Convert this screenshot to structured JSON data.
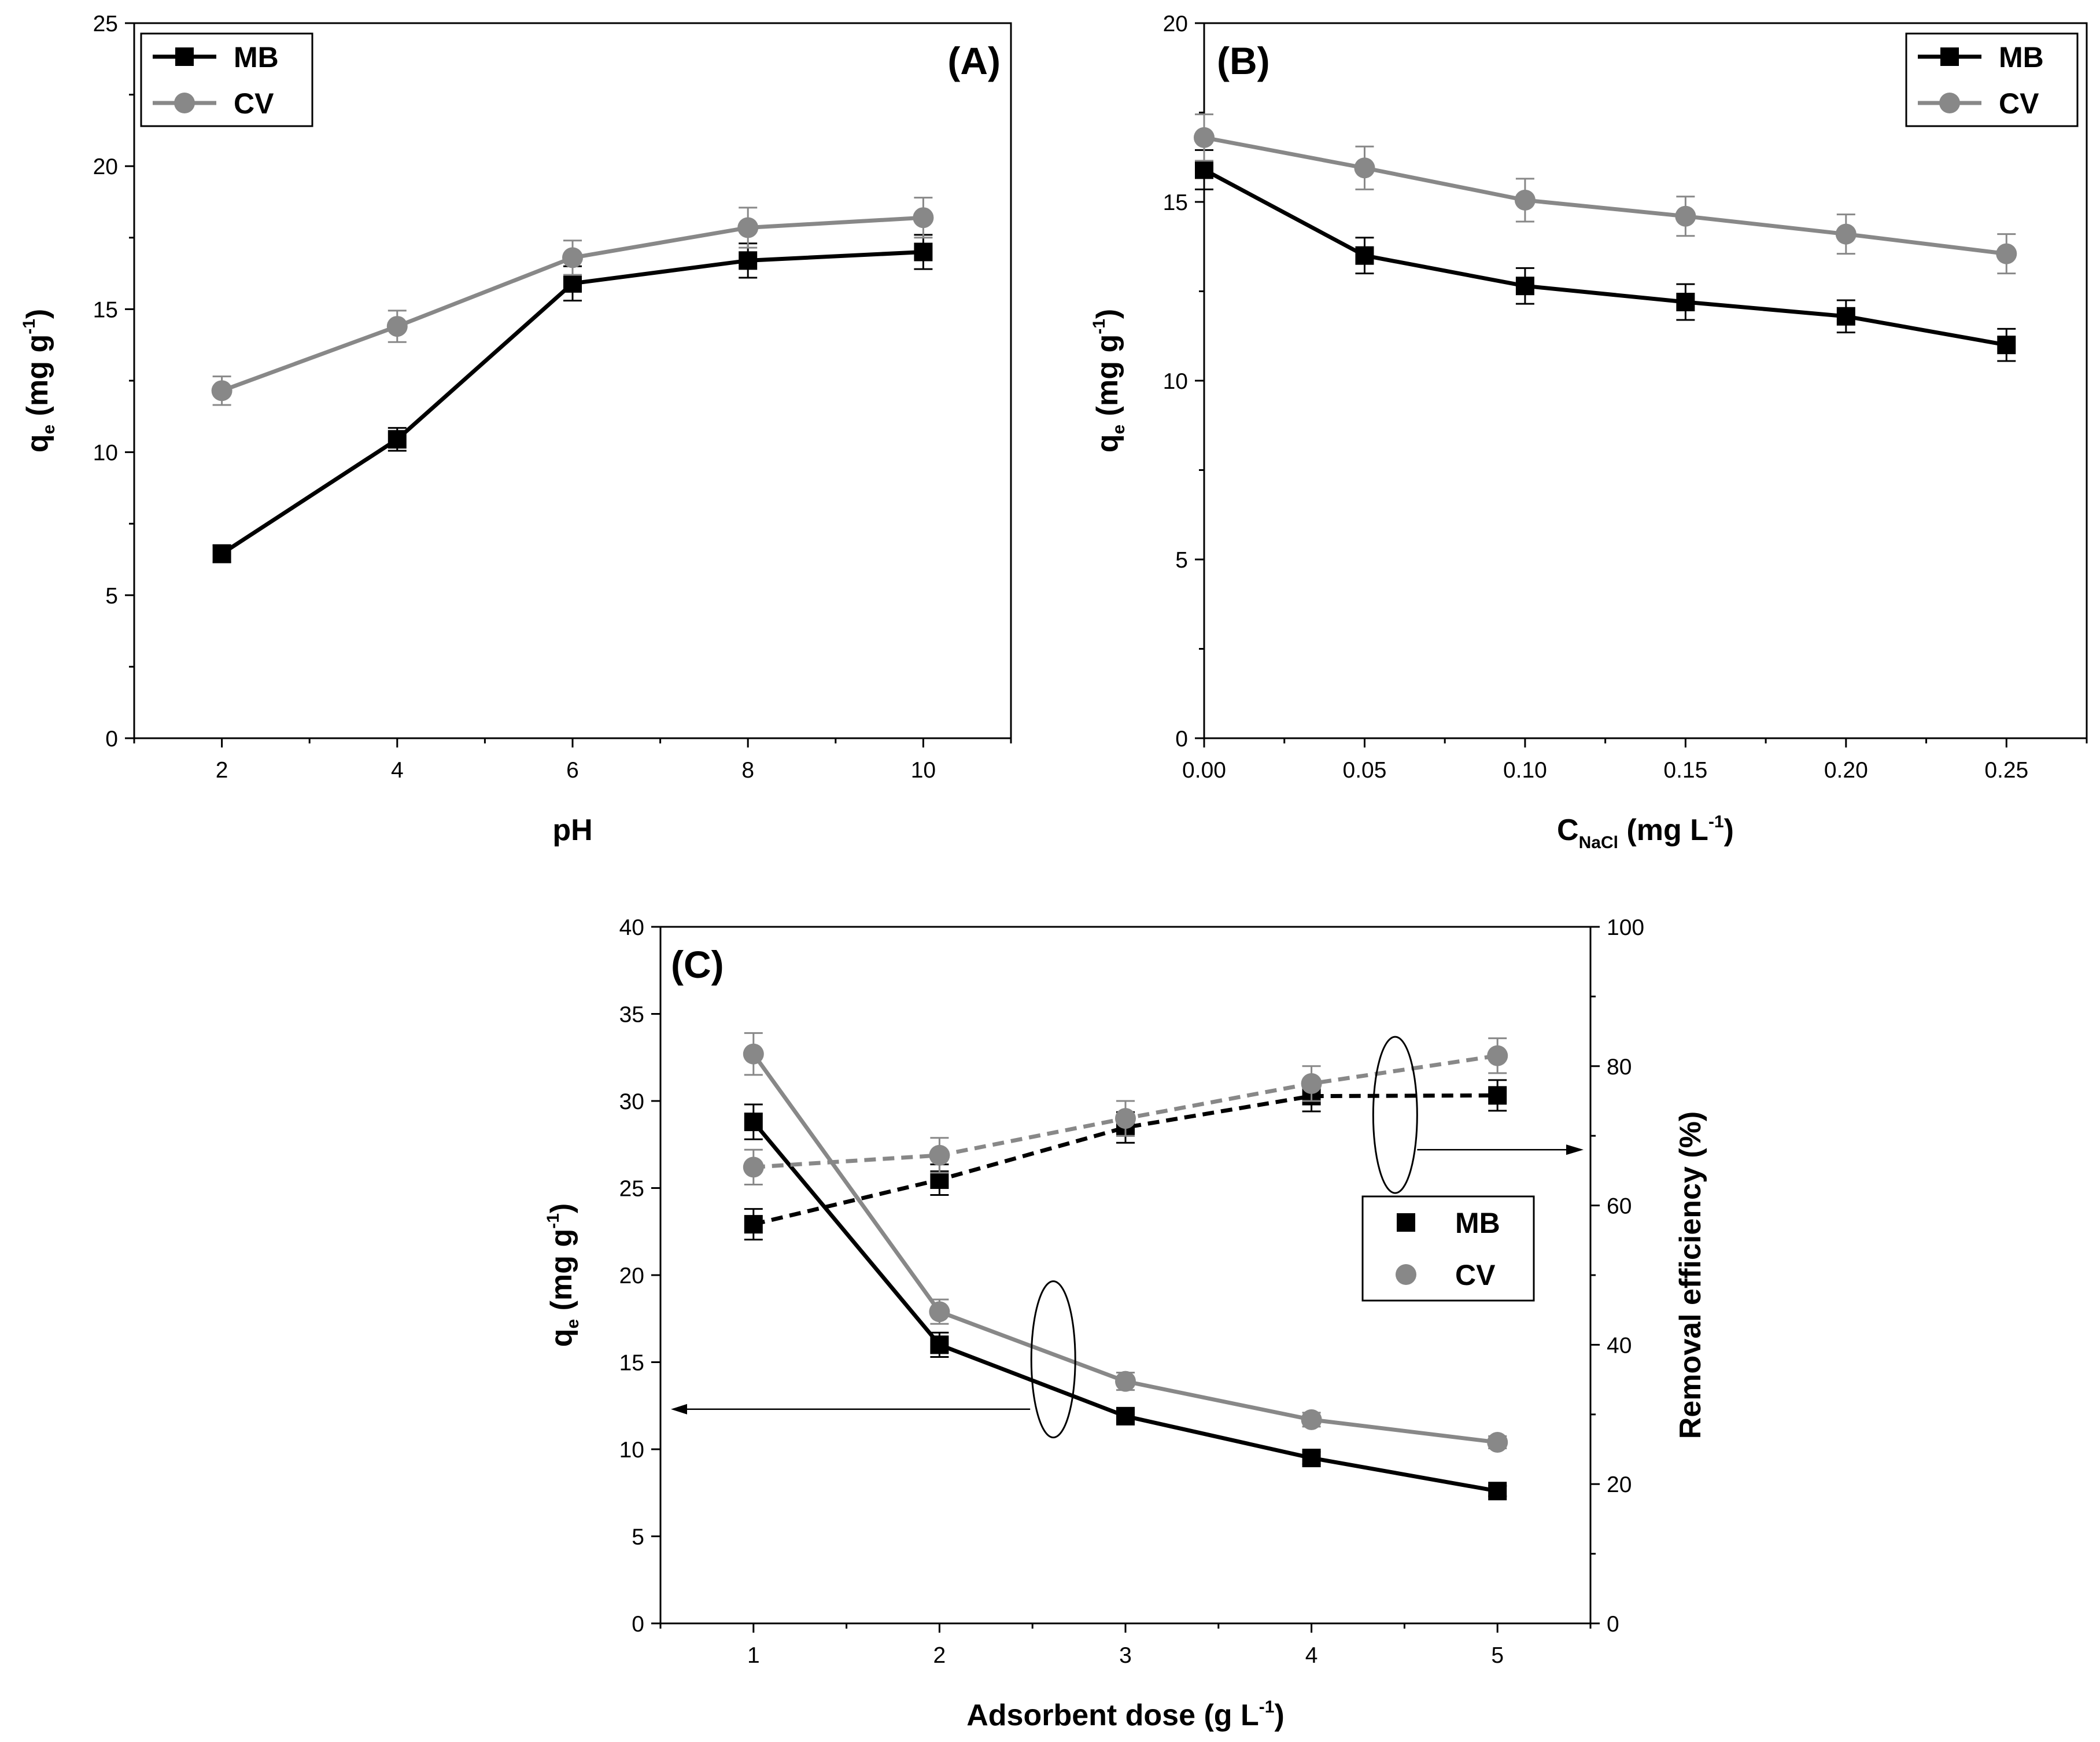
{
  "colors": {
    "mb": "#000000",
    "cv": "#888888",
    "axis": "#000000"
  },
  "chart_data": [
    {
      "panel": "(A)",
      "type": "line",
      "xlabel": "pH",
      "ylabel": {
        "q": "q",
        "sub": "e",
        "unit": " (mg g",
        "sup": "-1",
        "close": ")"
      },
      "x": [
        2,
        4,
        6,
        8,
        10
      ],
      "xlim": [
        1,
        11
      ],
      "ylim": [
        0,
        25
      ],
      "xticks": [
        2,
        4,
        6,
        8,
        10
      ],
      "xtick_labels": [
        "2",
        "4",
        "6",
        "8",
        "10"
      ],
      "xminor": [
        1,
        3,
        5,
        7,
        9,
        11
      ],
      "yticks": [
        0,
        5,
        10,
        15,
        20,
        25
      ],
      "ytick_labels": [
        "0",
        "5",
        "10",
        "15",
        "20",
        "25"
      ],
      "yminor": [
        2.5,
        7.5,
        12.5,
        17.5,
        22.5
      ],
      "legend_position": "top-left",
      "series": [
        {
          "name": "MB",
          "marker": "square",
          "color": "#000000",
          "values": [
            6.45,
            10.45,
            15.9,
            16.7,
            17.0
          ],
          "errors": [
            0.3,
            0.4,
            0.6,
            0.6,
            0.6
          ]
        },
        {
          "name": "CV",
          "marker": "circle",
          "color": "#888888",
          "values": [
            12.15,
            14.4,
            16.8,
            17.85,
            18.2
          ],
          "errors": [
            0.5,
            0.55,
            0.6,
            0.7,
            0.7
          ]
        }
      ]
    },
    {
      "panel": "(B)",
      "type": "line",
      "xlabel": {
        "c": "C",
        "sub": "NaCl",
        "unit": " (mg L",
        "sup": "-1",
        "close": ")"
      },
      "ylabel": {
        "q": "q",
        "sub": "e",
        "unit": " (mg g",
        "sup": "-1",
        "close": ")"
      },
      "x": [
        0.0,
        0.05,
        0.1,
        0.15,
        0.2,
        0.25
      ],
      "xlim": [
        0,
        0.275
      ],
      "ylim": [
        0,
        20
      ],
      "xticks": [
        0,
        0.05,
        0.1,
        0.15,
        0.2,
        0.25
      ],
      "xtick_labels": [
        "0.00",
        "0.05",
        "0.10",
        "0.15",
        "0.20",
        "0.25"
      ],
      "xminor": [
        0.025,
        0.075,
        0.125,
        0.175,
        0.225,
        0.275
      ],
      "yticks": [
        0,
        5,
        10,
        15,
        20
      ],
      "ytick_labels": [
        "0",
        "5",
        "10",
        "15",
        "20"
      ],
      "yminor": [
        2.5,
        7.5,
        12.5,
        17.5
      ],
      "legend_position": "top-right",
      "series": [
        {
          "name": "MB",
          "marker": "square",
          "color": "#000000",
          "values": [
            15.9,
            13.5,
            12.65,
            12.2,
            11.8,
            11.0
          ],
          "errors": [
            0.55,
            0.5,
            0.5,
            0.5,
            0.45,
            0.45
          ]
        },
        {
          "name": "CV",
          "marker": "circle",
          "color": "#888888",
          "values": [
            16.8,
            15.95,
            15.05,
            14.6,
            14.1,
            13.55
          ],
          "errors": [
            0.65,
            0.6,
            0.6,
            0.55,
            0.55,
            0.55
          ]
        }
      ]
    },
    {
      "panel": "(C)",
      "type": "line",
      "xlabel": {
        "text": "Adsorbent dose (g L",
        "sup": "-1",
        "close": ")"
      },
      "ylabel": {
        "q": "q",
        "sub": "e",
        "unit": " (mg g",
        "sup": "-1",
        "close": ")"
      },
      "ylabel_right": "Removal efficiency (%)",
      "x": [
        1,
        2,
        3,
        4,
        5
      ],
      "xlim": [
        0.5,
        5.5
      ],
      "ylim": [
        0,
        40
      ],
      "ylim_right": [
        0,
        100
      ],
      "xticks": [
        1,
        2,
        3,
        4,
        5
      ],
      "xtick_labels": [
        "1",
        "2",
        "3",
        "4",
        "5"
      ],
      "xminor": [
        0.5,
        1.5,
        2.5,
        3.5,
        4.5,
        5.5
      ],
      "yticks": [
        0,
        5,
        10,
        15,
        20,
        25,
        30,
        35,
        40
      ],
      "ytick_labels": [
        "0",
        "5",
        "10",
        "15",
        "20",
        "25",
        "30",
        "35",
        "40"
      ],
      "yticks_right": [
        0,
        20,
        40,
        60,
        80,
        100
      ],
      "ytick_labels_right": [
        "0",
        "20",
        "40",
        "60",
        "80",
        "100"
      ],
      "yminor_right": [
        10,
        30,
        50,
        70,
        90
      ],
      "legend_position": "center-right",
      "series": [
        {
          "name": "MB",
          "axis": "left",
          "style": "solid",
          "marker": "square",
          "color": "#000000",
          "values": [
            28.8,
            16.0,
            11.9,
            9.5,
            7.6
          ],
          "errors": [
            1.0,
            0.7,
            0.4,
            0.35,
            0.3
          ]
        },
        {
          "name": "CV",
          "axis": "left",
          "style": "solid",
          "marker": "circle",
          "color": "#888888",
          "values": [
            32.7,
            17.9,
            13.9,
            11.7,
            10.4
          ],
          "errors": [
            1.2,
            0.7,
            0.5,
            0.4,
            0.35
          ]
        },
        {
          "name": "MB",
          "axis": "right",
          "style": "dashed",
          "marker": "square",
          "color": "#000000",
          "values": [
            57.3,
            63.7,
            71.2,
            75.7,
            75.8
          ],
          "errors": [
            2.2,
            2.2,
            2.2,
            2.2,
            2.2
          ]
        },
        {
          "name": "CV",
          "axis": "right",
          "style": "dashed",
          "marker": "circle",
          "color": "#888888",
          "values": [
            65.5,
            67.2,
            72.5,
            77.5,
            81.5
          ],
          "errors": [
            2.5,
            2.5,
            2.5,
            2.5,
            2.5
          ]
        }
      ],
      "annotations": [
        {
          "type": "ellipse-arrow",
          "target": "left-axis",
          "at_x": 2.5
        },
        {
          "type": "ellipse-arrow",
          "target": "right-axis",
          "at_x": 4.45
        }
      ]
    }
  ]
}
